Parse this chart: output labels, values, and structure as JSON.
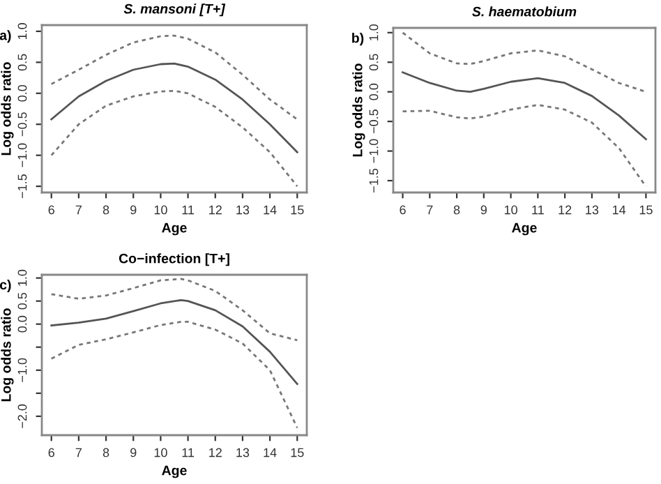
{
  "chart_data": [
    {
      "type": "line",
      "title": "S. mansoni [T+]",
      "xlabel": "Age",
      "ylabel": "Log odds ratio",
      "annotations": [
        "a)"
      ],
      "x": [
        6,
        7,
        8,
        9,
        10,
        10.5,
        11,
        12,
        13,
        14,
        15
      ],
      "series": [
        {
          "color": "#555555",
          "line_style": "solid",
          "values": [
            -0.42,
            -0.05,
            0.2,
            0.38,
            0.47,
            0.48,
            0.43,
            0.22,
            -0.1,
            -0.5,
            -0.95
          ]
        },
        {
          "color": "#777777",
          "line_style": "dashed",
          "values": [
            0.15,
            0.38,
            0.62,
            0.82,
            0.92,
            0.93,
            0.88,
            0.66,
            0.3,
            -0.1,
            -0.42
          ]
        },
        {
          "color": "#777777",
          "line_style": "dashed",
          "values": [
            -1.0,
            -0.5,
            -0.2,
            -0.05,
            0.03,
            0.04,
            0.0,
            -0.22,
            -0.55,
            -0.95,
            -1.5
          ]
        }
      ],
      "xlim": [
        5.65,
        15.35
      ],
      "ylim": [
        -1.6,
        1.1
      ],
      "xticks": [
        6,
        7,
        8,
        9,
        10,
        11,
        12,
        13,
        14,
        15
      ],
      "yticks": [
        {
          "value": -1.5,
          "label": "−1.5"
        },
        {
          "value": -1.0,
          "label": "−1.0"
        },
        {
          "value": -0.5,
          "label": "−0.5"
        },
        {
          "value": 0,
          "label": "0.0"
        },
        {
          "value": 0.5,
          "label": "0.5"
        },
        {
          "value": 1.0,
          "label": "1.0"
        }
      ],
      "grid": false
    },
    {
      "type": "line",
      "title": "S. haematobium",
      "xlabel": "Age",
      "ylabel": "Log odds ratio",
      "annotations": [
        "b)"
      ],
      "x": [
        6,
        7,
        8,
        8.5,
        9,
        10,
        11,
        12,
        13,
        14,
        15
      ],
      "series": [
        {
          "color": "#555555",
          "line_style": "solid",
          "values": [
            0.33,
            0.15,
            0.02,
            0.0,
            0.05,
            0.17,
            0.23,
            0.15,
            -0.07,
            -0.4,
            -0.8
          ]
        },
        {
          "color": "#777777",
          "line_style": "dashed",
          "values": [
            1.0,
            0.65,
            0.48,
            0.47,
            0.52,
            0.65,
            0.7,
            0.6,
            0.38,
            0.15,
            0.0
          ]
        },
        {
          "color": "#777777",
          "line_style": "dashed",
          "values": [
            -0.33,
            -0.32,
            -0.43,
            -0.45,
            -0.42,
            -0.3,
            -0.22,
            -0.3,
            -0.52,
            -0.95,
            -1.6
          ]
        }
      ],
      "xlim": [
        5.65,
        15.35
      ],
      "ylim": [
        -1.7,
        1.08
      ],
      "xticks": [
        6,
        7,
        8,
        9,
        10,
        11,
        12,
        13,
        14,
        15
      ],
      "yticks": [
        {
          "value": -1.5,
          "label": "−1.5"
        },
        {
          "value": -1.0,
          "label": "−1.0"
        },
        {
          "value": -0.5,
          "label": "−0.5"
        },
        {
          "value": 0,
          "label": "0.0"
        },
        {
          "value": 0.5,
          "label": "0.5"
        },
        {
          "value": 1.0,
          "label": "1.0"
        }
      ],
      "grid": false
    },
    {
      "type": "line",
      "title": "Co−infection [T+]",
      "xlabel": "Age",
      "ylabel": "Log odds ratio",
      "annotations": [
        "c)"
      ],
      "x": [
        6,
        7,
        8,
        9,
        10,
        10.75,
        11,
        12,
        13,
        14,
        15
      ],
      "series": [
        {
          "color": "#555555",
          "line_style": "solid",
          "values": [
            -0.03,
            0.03,
            0.12,
            0.28,
            0.45,
            0.52,
            0.5,
            0.3,
            -0.05,
            -0.6,
            -1.3
          ]
        },
        {
          "color": "#777777",
          "line_style": "dashed",
          "values": [
            0.65,
            0.55,
            0.62,
            0.78,
            0.95,
            0.98,
            0.95,
            0.72,
            0.3,
            -0.2,
            -0.35
          ]
        },
        {
          "color": "#777777",
          "line_style": "dashed",
          "values": [
            -0.75,
            -0.45,
            -0.33,
            -0.18,
            -0.02,
            0.05,
            0.05,
            -0.12,
            -0.42,
            -1.0,
            -2.25
          ]
        }
      ],
      "xlim": [
        5.65,
        15.35
      ],
      "ylim": [
        -2.41,
        1.07
      ],
      "xticks": [
        6,
        7,
        8,
        9,
        10,
        11,
        12,
        13,
        14,
        15
      ],
      "yticks": [
        {
          "value": -2.0,
          "label": "−2.0"
        },
        {
          "value": -1.5,
          "label": null
        },
        {
          "value": -1.0,
          "label": "−1.0"
        },
        {
          "value": -0.5,
          "label": null
        },
        {
          "value": 0,
          "label": "0.0"
        },
        {
          "value": 0.5,
          "label": "0.5"
        },
        {
          "value": 1.0,
          "label": "1.0"
        }
      ],
      "grid": false
    }
  ]
}
